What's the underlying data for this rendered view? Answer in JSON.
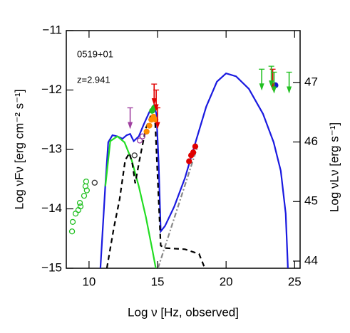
{
  "chart_data": {
    "type": "sed",
    "annotations": [
      "0519+01",
      "z=2.941"
    ],
    "xlabel": "Log ν [Hz, observed]",
    "ylabel": "Log νFν [erg cm⁻² s⁻¹]",
    "y2label": "Log νLν [erg s⁻¹]",
    "xlim": [
      8.34,
      25.4
    ],
    "ylim": [
      -15,
      -11
    ],
    "y2lim": [
      43.88,
      47.87
    ],
    "xticks": [
      10,
      15,
      20,
      25
    ],
    "yticks": [
      {
        "value": -11,
        "label": "−11"
      },
      {
        "value": -12,
        "label": "−12"
      },
      {
        "value": -13,
        "label": "−13"
      },
      {
        "value": -14,
        "label": "−14"
      },
      {
        "value": -15,
        "label": "−15"
      }
    ],
    "y2ticks": [
      44,
      45,
      46,
      47
    ],
    "series": [
      {
        "type": "line",
        "color": "#1a1ae0",
        "dash": "none",
        "x": [
          10.83,
          11.19,
          11.4,
          11.71,
          12.07,
          12.44,
          12.75,
          13.0,
          13.26,
          13.63,
          13.99,
          14.4,
          14.72,
          14.92,
          15.08,
          15.23,
          15.54,
          16.22,
          17.0,
          17.77,
          18.55,
          19.33,
          20.0,
          20.73,
          21.66,
          22.69,
          23.47,
          23.99,
          24.35,
          24.51
        ],
        "values": [
          -15,
          -13.6,
          -12.88,
          -12.76,
          -12.78,
          -12.82,
          -12.76,
          -12.74,
          -12.86,
          -12.78,
          -12.58,
          -12.37,
          -12.26,
          -12.4,
          -13.24,
          -14.38,
          -14.29,
          -13.96,
          -13.48,
          -12.88,
          -12.28,
          -11.86,
          -11.72,
          -11.77,
          -11.98,
          -12.4,
          -12.88,
          -13.36,
          -14.08,
          -15
        ]
      },
      {
        "type": "line",
        "color": "#22dd22",
        "dash": "none",
        "x": [
          11.19,
          11.55,
          12.07,
          12.59,
          13.11,
          13.63,
          14.15,
          14.66,
          14.87
        ],
        "values": [
          -13.62,
          -12.86,
          -12.78,
          -12.88,
          -13.18,
          -13.62,
          -14.14,
          -14.74,
          -15
        ]
      },
      {
        "type": "line",
        "color": "#000000",
        "dash": "7,5",
        "x": [
          11.3,
          11.81,
          12.23,
          12.64,
          12.95,
          13.16,
          13.37,
          13.68,
          14.15,
          14.56,
          14.82,
          15.03,
          15.23,
          15.54,
          17.0,
          18.03,
          18.45
        ],
        "values": [
          -15,
          -14.32,
          -13.84,
          -13.18,
          -13.06,
          -13.24,
          -13.57,
          -13.18,
          -12.64,
          -12.4,
          -12.52,
          -13.6,
          -14.62,
          -14.66,
          -14.68,
          -14.76,
          -15
        ]
      },
      {
        "type": "line",
        "color": "#888888",
        "dash": "7,3,2,3",
        "x": [
          15.03,
          17.93
        ],
        "values": [
          -15,
          -12.94
        ]
      },
      {
        "type": "scatter",
        "color": "#22c022",
        "filled": false,
        "x": [
          8.76,
          8.81,
          9.02,
          9.22,
          9.33,
          9.38,
          9.64,
          9.74,
          9.79,
          9.84
        ],
        "values": [
          -14.38,
          -14.22,
          -14.08,
          -14.02,
          -13.9,
          -13.96,
          -13.78,
          -13.62,
          -13.54,
          -13.69
        ]
      },
      {
        "type": "scatter",
        "color": "#333333",
        "filled": false,
        "x": [
          10.41,
          13.32
        ],
        "values": [
          -13.56,
          -13.1
        ]
      },
      {
        "type": "scatter",
        "color": "#a040a0",
        "filled": false,
        "x": [
          13.7,
          13.9
        ],
        "values": [
          -12.85,
          -12.78
        ]
      },
      {
        "type": "scatter",
        "color": "#ff8c00",
        "filled": true,
        "x": [
          14.2,
          14.4,
          14.55,
          14.7,
          14.85
        ],
        "values": [
          -12.7,
          -12.6,
          -12.5,
          -12.45,
          -12.5
        ]
      },
      {
        "type": "scatter",
        "color": "#22c022",
        "filled": true,
        "x": [
          14.6,
          14.75
        ],
        "values": [
          -12.35,
          -12.3
        ]
      },
      {
        "type": "scatter",
        "color": "#e00000",
        "filled": true,
        "x": [
          17.3,
          17.45,
          17.6,
          17.75
        ],
        "values": [
          -13.2,
          -13.1,
          -13.05,
          -12.95
        ]
      },
      {
        "type": "scatter",
        "color": "#1515d0",
        "filled": true,
        "x": [
          23.6
        ],
        "values": [
          -11.92
        ]
      },
      {
        "type": "upper_limit",
        "color": "#a040a0",
        "x": [
          13.0
        ],
        "values": [
          -12.3
        ]
      },
      {
        "type": "upper_limit",
        "color": "#e00000",
        "x": [
          14.75,
          14.9,
          15.0,
          23.4
        ],
        "values": [
          -11.9,
          -12.0,
          -12.3,
          -11.65
        ]
      },
      {
        "type": "upper_limit",
        "color": "#22c022",
        "x": [
          22.6,
          23.3,
          23.5,
          24.6
        ],
        "values": [
          -11.65,
          -11.6,
          -11.7,
          -11.7
        ]
      }
    ]
  }
}
